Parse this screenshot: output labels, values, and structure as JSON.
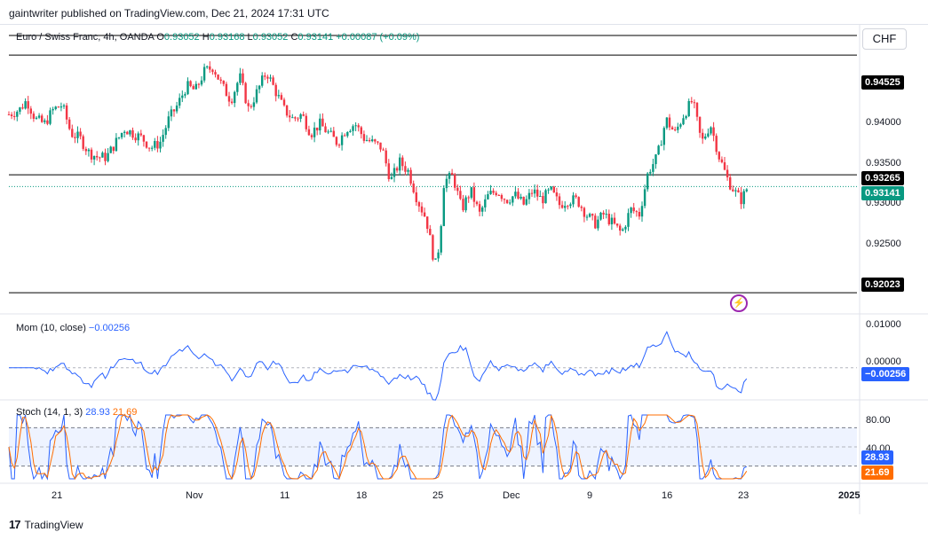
{
  "header": {
    "published": "gaintwriter published on TradingView.com, Dec 21, 2024 17:31 UTC"
  },
  "main_legend": {
    "symbol": "Euro / Swiss Franc, 4h, OANDA",
    "o_label": "O",
    "o": "0.93052",
    "h_label": "H",
    "h": "0.93168",
    "l_label": "L",
    "l": "0.93052",
    "c_label": "C",
    "c": "0.93141",
    "change": "+0.00087 (+0.09%)"
  },
  "currency": "CHF",
  "price_axis": {
    "ticks": [
      "0.94000",
      "0.93500",
      "0.93000",
      "0.92500"
    ],
    "tags": [
      {
        "label": "0.94525",
        "bg": "#000000"
      },
      {
        "label": "0.93265",
        "bg": "#000000"
      },
      {
        "label": "0.93141",
        "bg": "#089981"
      },
      {
        "label": "0.92023",
        "bg": "#000000"
      }
    ]
  },
  "momentum": {
    "legend": "Mom (10, close)",
    "value": "−0.00256",
    "ticks": [
      "0.01000",
      "0.00000"
    ],
    "tag": "−0.00256",
    "color": "#2962ff"
  },
  "stoch": {
    "legend": "Stoch (14, 1, 3)",
    "k": "28.93",
    "d": "21.69",
    "ticks": [
      "80.00",
      "40.00"
    ],
    "tag_k": "28.93",
    "tag_d": "21.69",
    "k_color": "#2962ff",
    "d_color": "#ff6d00"
  },
  "time_axis": [
    "21",
    "Nov",
    "11",
    "18",
    "25",
    "Dec",
    "9",
    "16",
    "23",
    "2025"
  ],
  "footer": {
    "brand": "TradingView"
  },
  "chart_data": {
    "type": "candlestick",
    "series_name": "Euro / Swiss Franc, 4h, OANDA",
    "y_range": [
      0.9195,
      0.9475
    ],
    "horizontal_levels": [
      0.94525,
      0.93265,
      0.92023
    ],
    "last_price": 0.93141,
    "path_points": [
      [
        0,
        0.939
      ],
      [
        12,
        0.9395
      ],
      [
        20,
        0.9405
      ],
      [
        30,
        0.9385
      ],
      [
        40,
        0.938
      ],
      [
        50,
        0.9395
      ],
      [
        60,
        0.94
      ],
      [
        70,
        0.937
      ],
      [
        80,
        0.9365
      ],
      [
        90,
        0.935
      ],
      [
        100,
        0.9345
      ],
      [
        110,
        0.9345
      ],
      [
        120,
        0.936
      ],
      [
        130,
        0.9375
      ],
      [
        140,
        0.937
      ],
      [
        150,
        0.9365
      ],
      [
        160,
        0.9355
      ],
      [
        170,
        0.936
      ],
      [
        180,
        0.9385
      ],
      [
        190,
        0.94
      ],
      [
        200,
        0.942
      ],
      [
        210,
        0.9415
      ],
      [
        220,
        0.9435
      ],
      [
        230,
        0.944
      ],
      [
        240,
        0.942
      ],
      [
        250,
        0.9405
      ],
      [
        260,
        0.943
      ],
      [
        270,
        0.9395
      ],
      [
        280,
        0.9415
      ],
      [
        290,
        0.9435
      ],
      [
        300,
        0.9415
      ],
      [
        310,
        0.9395
      ],
      [
        320,
        0.9385
      ],
      [
        330,
        0.939
      ],
      [
        340,
        0.937
      ],
      [
        350,
        0.938
      ],
      [
        360,
        0.937
      ],
      [
        370,
        0.936
      ],
      [
        380,
        0.9375
      ],
      [
        390,
        0.938
      ],
      [
        400,
        0.9365
      ],
      [
        410,
        0.936
      ],
      [
        420,
        0.9355
      ],
      [
        430,
        0.932
      ],
      [
        440,
        0.934
      ],
      [
        450,
        0.933
      ],
      [
        460,
        0.93
      ],
      [
        470,
        0.928
      ],
      [
        480,
        0.923
      ],
      [
        485,
        0.9255
      ],
      [
        490,
        0.932
      ],
      [
        500,
        0.9325
      ],
      [
        510,
        0.929
      ],
      [
        520,
        0.931
      ],
      [
        530,
        0.9285
      ],
      [
        540,
        0.9305
      ],
      [
        550,
        0.931
      ],
      [
        560,
        0.93
      ],
      [
        570,
        0.9305
      ],
      [
        580,
        0.9295
      ],
      [
        590,
        0.931
      ],
      [
        600,
        0.93
      ],
      [
        610,
        0.931
      ],
      [
        620,
        0.9295
      ],
      [
        630,
        0.93
      ],
      [
        640,
        0.93
      ],
      [
        650,
        0.9285
      ],
      [
        660,
        0.9275
      ],
      [
        670,
        0.9285
      ],
      [
        680,
        0.9275
      ],
      [
        690,
        0.9265
      ],
      [
        700,
        0.929
      ],
      [
        710,
        0.9285
      ],
      [
        720,
        0.933
      ],
      [
        730,
        0.9345
      ],
      [
        740,
        0.9385
      ],
      [
        750,
        0.937
      ],
      [
        760,
        0.939
      ],
      [
        770,
        0.9405
      ],
      [
        780,
        0.936
      ],
      [
        790,
        0.938
      ],
      [
        800,
        0.9345
      ],
      [
        810,
        0.932
      ],
      [
        820,
        0.9305
      ],
      [
        825,
        0.93
      ],
      [
        832,
        0.9314
      ]
    ]
  }
}
